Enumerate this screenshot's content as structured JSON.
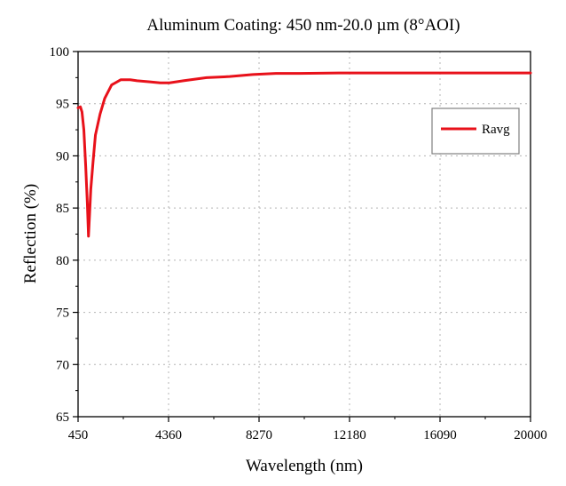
{
  "chart_data": {
    "type": "line",
    "title": "Aluminum Coating: 450 nm-20.0 µm (8°AOI)",
    "xlabel": "Wavelength (nm)",
    "ylabel": "Reflection (%)",
    "xlim": [
      450,
      20000
    ],
    "ylim": [
      65,
      100
    ],
    "xticks": [
      450,
      4360,
      8270,
      12180,
      16090,
      20000
    ],
    "yticks": [
      65,
      70,
      75,
      80,
      85,
      90,
      95,
      100
    ],
    "grid": true,
    "legend_position": "top-right",
    "series": [
      {
        "name": "Ravg",
        "color": "#e8111a",
        "x": [
          450,
          550,
          620,
          700,
          780,
          850,
          900,
          950,
          1000,
          1100,
          1200,
          1400,
          1600,
          1900,
          2300,
          2700,
          3000,
          3500,
          4000,
          4400,
          5000,
          6000,
          7000,
          8000,
          9000,
          10000,
          12000,
          16000,
          20000
        ],
        "y": [
          94.6,
          94.7,
          94.2,
          92.5,
          89.0,
          85.5,
          82.3,
          84.5,
          86.8,
          89.5,
          92.0,
          94.0,
          95.5,
          96.8,
          97.3,
          97.3,
          97.2,
          97.1,
          97.0,
          97.0,
          97.2,
          97.5,
          97.6,
          97.8,
          97.9,
          97.9,
          97.95,
          97.95,
          97.95
        ]
      }
    ]
  }
}
